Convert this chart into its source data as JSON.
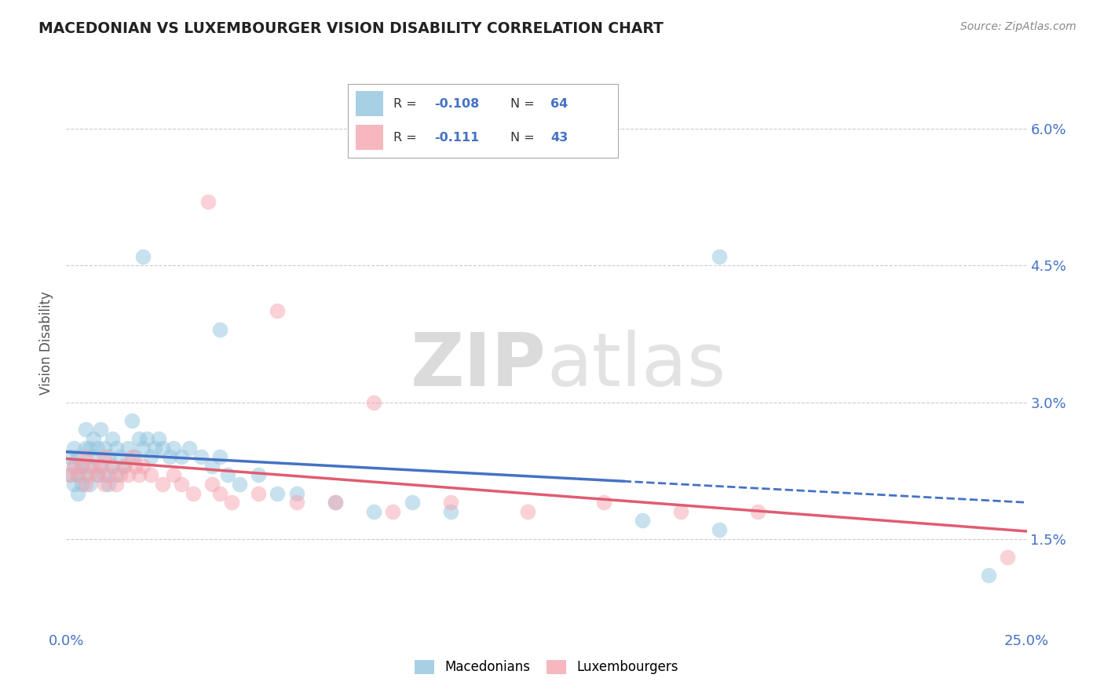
{
  "title": "MACEDONIAN VS LUXEMBOURGER VISION DISABILITY CORRELATION CHART",
  "source": "Source: ZipAtlas.com",
  "ylabel": "Vision Disability",
  "xlim": [
    0.0,
    0.25
  ],
  "ylim": [
    0.005,
    0.068
  ],
  "yticks": [
    0.015,
    0.03,
    0.045,
    0.06
  ],
  "yticklabels": [
    "1.5%",
    "3.0%",
    "4.5%",
    "6.0%"
  ],
  "xtick_positions": [
    0.0,
    0.05,
    0.1,
    0.15,
    0.2,
    0.25
  ],
  "xticklabels": [
    "0.0%",
    "",
    "",
    "",
    "",
    "25.0%"
  ],
  "mac_R": "-0.108",
  "mac_N": "64",
  "lux_R": "-0.111",
  "lux_N": "43",
  "mac_color": "#92c5de",
  "lux_color": "#f4a5b0",
  "mac_line_color": "#4472c4",
  "lux_line_color": "#e05c72",
  "legend_label_mac": "Macedonians",
  "legend_label_lux": "Luxembourgers",
  "watermark": "ZIPatlas",
  "mac_x": [
    0.001,
    0.001,
    0.002,
    0.002,
    0.002,
    0.003,
    0.003,
    0.003,
    0.004,
    0.004,
    0.005,
    0.005,
    0.005,
    0.006,
    0.006,
    0.006,
    0.007,
    0.007,
    0.008,
    0.008,
    0.009,
    0.009,
    0.01,
    0.01,
    0.011,
    0.011,
    0.012,
    0.012,
    0.013,
    0.013,
    0.014,
    0.015,
    0.016,
    0.017,
    0.018,
    0.019,
    0.02,
    0.021,
    0.022,
    0.023,
    0.024,
    0.025,
    0.027,
    0.028,
    0.03,
    0.032,
    0.035,
    0.038,
    0.04,
    0.042,
    0.045,
    0.05,
    0.055,
    0.06,
    0.07,
    0.08,
    0.09,
    0.1,
    0.15,
    0.17,
    0.02,
    0.04,
    0.17,
    0.24
  ],
  "mac_y": [
    0.022,
    0.024,
    0.021,
    0.023,
    0.025,
    0.02,
    0.022,
    0.024,
    0.021,
    0.023,
    0.022,
    0.025,
    0.027,
    0.021,
    0.023,
    0.025,
    0.024,
    0.026,
    0.022,
    0.025,
    0.023,
    0.027,
    0.022,
    0.025,
    0.021,
    0.024,
    0.023,
    0.026,
    0.022,
    0.025,
    0.024,
    0.023,
    0.025,
    0.028,
    0.024,
    0.026,
    0.025,
    0.026,
    0.024,
    0.025,
    0.026,
    0.025,
    0.024,
    0.025,
    0.024,
    0.025,
    0.024,
    0.023,
    0.024,
    0.022,
    0.021,
    0.022,
    0.02,
    0.02,
    0.019,
    0.018,
    0.019,
    0.018,
    0.017,
    0.016,
    0.046,
    0.038,
    0.046,
    0.011
  ],
  "lux_x": [
    0.001,
    0.002,
    0.003,
    0.004,
    0.005,
    0.005,
    0.006,
    0.007,
    0.008,
    0.009,
    0.01,
    0.01,
    0.011,
    0.012,
    0.013,
    0.014,
    0.015,
    0.016,
    0.017,
    0.018,
    0.019,
    0.02,
    0.022,
    0.025,
    0.028,
    0.03,
    0.033,
    0.038,
    0.04,
    0.043,
    0.05,
    0.06,
    0.07,
    0.085,
    0.1,
    0.12,
    0.14,
    0.16,
    0.037,
    0.055,
    0.08,
    0.18,
    0.245
  ],
  "lux_y": [
    0.022,
    0.023,
    0.022,
    0.023,
    0.021,
    0.024,
    0.022,
    0.023,
    0.022,
    0.023,
    0.021,
    0.024,
    0.022,
    0.023,
    0.021,
    0.022,
    0.023,
    0.022,
    0.024,
    0.023,
    0.022,
    0.023,
    0.022,
    0.021,
    0.022,
    0.021,
    0.02,
    0.021,
    0.02,
    0.019,
    0.02,
    0.019,
    0.019,
    0.018,
    0.019,
    0.018,
    0.019,
    0.018,
    0.052,
    0.04,
    0.03,
    0.018,
    0.013
  ],
  "trend_mac_x0": 0.0,
  "trend_mac_x_solid_end": 0.145,
  "trend_mac_x1": 0.25,
  "trend_lux_x0": 0.0,
  "trend_lux_x1": 0.25
}
